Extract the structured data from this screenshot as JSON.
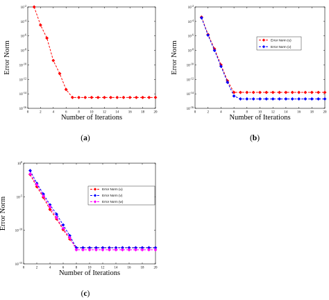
{
  "figure": {
    "captions": [
      "(a)",
      "(b)",
      "(c)"
    ]
  },
  "chart_data": [
    {
      "type": "line",
      "panel": "a",
      "xlabel": "Number of Iterations",
      "ylabel": "Error Norm",
      "xlim": [
        0,
        20
      ],
      "ylim_log10": [
        -16,
        -2
      ],
      "yscale": "log",
      "xticks": [
        0,
        2,
        4,
        6,
        8,
        10,
        12,
        14,
        16,
        18,
        20
      ],
      "yticks_log10": [
        -16,
        -14,
        -12,
        -10,
        -8,
        -6,
        -4,
        -2
      ],
      "legend": false,
      "series": [
        {
          "color": "#ff0000",
          "marker": "diamond",
          "x": [
            1,
            2,
            3,
            4,
            5,
            6,
            7,
            8,
            9,
            10,
            11,
            12,
            13,
            14,
            15,
            16,
            17,
            18,
            19,
            20
          ],
          "log10_values": [
            -2.0,
            -4.5,
            -6.3,
            -9.4,
            -11.2,
            -13.4,
            -14.5,
            -14.5,
            -14.5,
            -14.5,
            -14.5,
            -14.5,
            -14.5,
            -14.5,
            -14.5,
            -14.5,
            -14.5,
            -14.5,
            -14.5,
            -14.5
          ]
        }
      ]
    },
    {
      "type": "line",
      "panel": "b",
      "xlabel": "Number of Iterations",
      "ylabel": "Error Norm",
      "xlim": [
        0,
        20
      ],
      "ylim_log10": [
        -16,
        -2
      ],
      "yscale": "log",
      "xticks": [
        0,
        2,
        4,
        6,
        8,
        10,
        12,
        14,
        16,
        18,
        20
      ],
      "yticks_log10": [
        -16,
        -14,
        -12,
        -10,
        -8,
        -6,
        -4,
        -2
      ],
      "legend": "upper right",
      "series": [
        {
          "name": "Error Norm (u)",
          "color": "#ff0000",
          "marker": "diamond",
          "x": [
            1,
            2,
            3,
            4,
            5,
            6,
            7,
            8,
            9,
            10,
            11,
            12,
            13,
            14,
            15,
            16,
            17,
            18,
            19,
            20
          ],
          "log10_values": [
            -3.4,
            -5.8,
            -7.8,
            -10.0,
            -12.2,
            -13.8,
            -13.8,
            -13.8,
            -13.8,
            -13.8,
            -13.8,
            -13.8,
            -13.8,
            -13.8,
            -13.8,
            -13.8,
            -13.8,
            -13.8,
            -13.8,
            -13.8
          ]
        },
        {
          "name": "Error Norm (v)",
          "color": "#0000ff",
          "marker": "diamond",
          "x": [
            1,
            2,
            3,
            4,
            5,
            6,
            7,
            8,
            9,
            10,
            11,
            12,
            13,
            14,
            15,
            16,
            17,
            18,
            19,
            20
          ],
          "log10_values": [
            -3.5,
            -5.9,
            -8.0,
            -10.2,
            -12.4,
            -14.3,
            -14.7,
            -14.7,
            -14.7,
            -14.7,
            -14.7,
            -14.7,
            -14.7,
            -14.7,
            -14.7,
            -14.7,
            -14.7,
            -14.7,
            -14.7,
            -14.7
          ]
        }
      ]
    },
    {
      "type": "line",
      "panel": "c",
      "xlabel": "Number of Iterations",
      "ylabel": "Error Norm",
      "xlim": [
        0,
        20
      ],
      "ylim_log10": [
        -15,
        0
      ],
      "yscale": "log",
      "xticks": [
        0,
        2,
        4,
        6,
        8,
        10,
        12,
        14,
        16,
        18,
        20
      ],
      "yticks_log10": [
        -15,
        -10,
        -5,
        0
      ],
      "legend": "upper right",
      "series": [
        {
          "name": "Error Norm (u)",
          "color": "#ff0000",
          "marker": "diamond",
          "x": [
            1,
            2,
            3,
            4,
            5,
            6,
            7,
            8,
            9,
            10,
            11,
            12,
            13,
            14,
            15,
            16,
            17,
            18,
            19,
            20
          ],
          "log10_values": [
            -1.7,
            -3.5,
            -5.1,
            -6.9,
            -8.3,
            -9.9,
            -11.3,
            -12.6,
            -12.6,
            -12.6,
            -12.6,
            -12.6,
            -12.6,
            -12.6,
            -12.6,
            -12.6,
            -12.6,
            -12.6,
            -12.6,
            -12.6
          ]
        },
        {
          "name": "Error Norm (v)",
          "color": "#0000ff",
          "marker": "diamond",
          "x": [
            1,
            2,
            3,
            4,
            5,
            6,
            7,
            8,
            9,
            10,
            11,
            12,
            13,
            14,
            15,
            16,
            17,
            18,
            19,
            20
          ],
          "log10_values": [
            -1.1,
            -3.0,
            -4.6,
            -6.2,
            -7.6,
            -9.2,
            -10.8,
            -12.6,
            -12.6,
            -12.6,
            -12.6,
            -12.6,
            -12.6,
            -12.6,
            -12.6,
            -12.6,
            -12.6,
            -12.6,
            -12.6,
            -12.6
          ]
        },
        {
          "name": "Error Norm (w)",
          "color": "#ff00ff",
          "marker": "diamond",
          "x": [
            1,
            2,
            3,
            4,
            5,
            6,
            7,
            8,
            9,
            10,
            11,
            12,
            13,
            14,
            15,
            16,
            17,
            18,
            19,
            20
          ],
          "log10_values": [
            -1.6,
            -3.2,
            -4.9,
            -6.5,
            -8.1,
            -9.7,
            -11.1,
            -12.9,
            -12.9,
            -12.9,
            -12.9,
            -12.9,
            -12.9,
            -12.9,
            -12.9,
            -12.9,
            -12.9,
            -12.9,
            -12.9,
            -12.9
          ]
        }
      ]
    }
  ]
}
